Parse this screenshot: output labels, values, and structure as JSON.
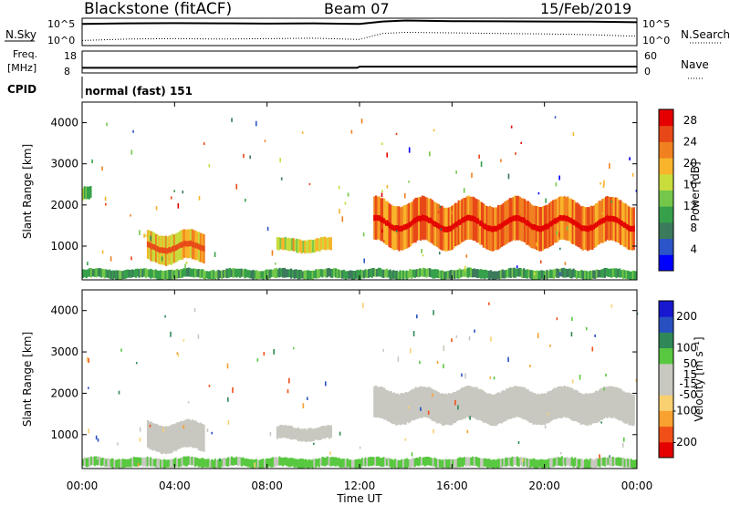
{
  "header": {
    "site": "Blackstone (fitACF)",
    "beam": "Beam 07",
    "date": "15/Feb/2019"
  },
  "noise_panel": {
    "left_label": "N.Sky",
    "right_label": "N.Search",
    "y_ticks_left": [
      "10^5",
      "10^0"
    ],
    "y_ticks_right": [
      "10^5",
      "10^0"
    ]
  },
  "freq_panel": {
    "left_label_line1": "Freq.",
    "left_label_line2": "[MHz]",
    "right_label": "Nave",
    "y_ticks_left": [
      "18",
      "8"
    ],
    "y_ticks_right": [
      "60",
      "0"
    ]
  },
  "cpid": {
    "label": "CPID",
    "value": "normal (fast) 151"
  },
  "x_axis": {
    "title": "Time UT",
    "ticks": [
      "00:00",
      "04:00",
      "08:00",
      "12:00",
      "16:00",
      "20:00",
      "00:00"
    ]
  },
  "colors": {
    "power_scale": [
      "#0000ff",
      "#2b55c8",
      "#3c7a5c",
      "#36a04a",
      "#74c74a",
      "#c8dc3c",
      "#f8b42a",
      "#f08020",
      "#e84818",
      "#e40000"
    ],
    "velocity_scale": [
      "#e40000",
      "#f05018",
      "#f8a030",
      "#f8d070",
      "#c8c8c0",
      "#c8c8c0",
      "#58c840",
      "#308858",
      "#2850c0",
      "#1818d0"
    ],
    "ground_scatter": "#c8c8c0"
  },
  "chart_data": [
    {
      "type": "line",
      "title": "",
      "xlabel": "Time UT",
      "ylabel": "N.Sky",
      "x_range_hours": [
        0,
        24
      ],
      "y_scale": "log",
      "ylim": [
        1,
        100000
      ],
      "series": [
        {
          "name": "N.Sky",
          "style": "solid",
          "x": [
            0,
            2,
            4,
            6,
            8,
            10,
            12,
            13,
            14,
            16,
            18,
            20,
            22,
            24
          ],
          "values": [
            15000,
            20000,
            22000,
            20000,
            18000,
            20000,
            15000,
            50000,
            80000,
            60000,
            55000,
            50000,
            45000,
            35000
          ]
        },
        {
          "name": "N.Search",
          "style": "dotted",
          "x": [
            0,
            2,
            4,
            6,
            8,
            10,
            12,
            13,
            14,
            16,
            18,
            20,
            22,
            24
          ],
          "values": [
            5,
            10,
            12,
            10,
            12,
            15,
            8,
            150,
            250,
            200,
            150,
            120,
            80,
            40
          ]
        }
      ]
    },
    {
      "type": "line",
      "title": "",
      "xlabel": "Time UT",
      "ylabel": "Freq. [MHz]",
      "x_range_hours": [
        0,
        24
      ],
      "ylim": [
        8,
        18
      ],
      "series": [
        {
          "name": "Freq.",
          "style": "solid",
          "x": [
            0,
            11.9,
            12.0,
            24
          ],
          "values": [
            10.2,
            10.2,
            10.8,
            10.8
          ]
        }
      ]
    },
    {
      "type": "heatmap",
      "title": "",
      "xlabel": "Time UT",
      "ylabel": "Slant Range [km]",
      "colorbar_label": "Power [dB]",
      "colorbar_ticks": [
        4,
        8,
        12,
        16,
        20,
        24,
        28
      ],
      "colorbar_range": [
        0,
        30
      ],
      "x_range_hours": [
        0,
        24
      ],
      "ylim": [
        180,
        4500
      ],
      "y_ticks": [
        1000,
        2000,
        3000,
        4000
      ],
      "x_ticks_hours": [
        0,
        4,
        8,
        12,
        16,
        20,
        24
      ],
      "features": [
        {
          "name": "near-range band",
          "t_start": 0.0,
          "t_end": 24.0,
          "range_low": 200,
          "range_high": 450,
          "level": 10
        },
        {
          "name": "early patch",
          "t_start": 2.8,
          "t_end": 5.3,
          "range_low": 600,
          "range_high": 1350,
          "level": 20
        },
        {
          "name": "mid patch",
          "t_start": 8.4,
          "t_end": 10.8,
          "range_low": 850,
          "range_high": 1200,
          "level": 18
        },
        {
          "name": "main band",
          "t_start": 12.6,
          "t_end": 23.9,
          "range_low": 1000,
          "range_high": 2100,
          "level": 24
        },
        {
          "name": "small patch",
          "t_start": 0.0,
          "t_end": 0.4,
          "range_low": 2100,
          "range_high": 2450,
          "level": 13
        }
      ]
    },
    {
      "type": "heatmap",
      "title": "",
      "xlabel": "Time UT",
      "ylabel": "Slant Range [km]",
      "colorbar_label": "Velocity [m s⁻¹]",
      "colorbar_ticks": [
        200,
        100,
        50,
        15,
        -15,
        -50,
        -100,
        -200
      ],
      "colorbar_range": [
        -250,
        250
      ],
      "x_range_hours": [
        0,
        24
      ],
      "ylim": [
        180,
        4500
      ],
      "y_ticks": [
        1000,
        2000,
        3000,
        4000
      ],
      "x_ticks_hours": [
        0,
        4,
        8,
        12,
        16,
        20,
        24
      ],
      "features": [
        {
          "name": "near-range band",
          "t_start": 0.0,
          "t_end": 24.0,
          "range_low": 200,
          "range_high": 450,
          "velocity": 60
        },
        {
          "name": "early patch",
          "t_start": 2.8,
          "t_end": 5.3,
          "range_low": 600,
          "range_high": 1300,
          "velocity": 0
        },
        {
          "name": "mid patch",
          "t_start": 8.4,
          "t_end": 10.8,
          "range_low": 850,
          "range_high": 1200,
          "velocity": -30
        },
        {
          "name": "main band",
          "t_start": 12.6,
          "t_end": 23.9,
          "range_low": 1300,
          "range_high": 2100,
          "velocity": 0
        }
      ]
    }
  ]
}
